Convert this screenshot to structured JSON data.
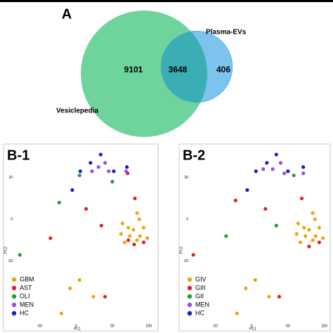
{
  "chart_data": [
    {
      "type": "venn",
      "title": "A",
      "sets": [
        {
          "name": "Vesiclepedia",
          "color": "#6fd39c"
        },
        {
          "name": "Plasma-EVs",
          "color": "#7cc4ee"
        }
      ],
      "overlap_color": "#3aaeb4",
      "values": [
        9101,
        3648,
        406
      ]
    },
    {
      "type": "scatter",
      "title": "B-1",
      "xlabel": "PC1",
      "ylabel": "PC2",
      "xlim": [
        -85,
        108
      ],
      "ylim": [
        -50,
        34
      ],
      "xticks": [
        -50,
        0,
        50,
        100
      ],
      "yticks": [
        -20,
        0,
        20
      ],
      "series": [
        {
          "name": "GBM",
          "color": "#f2a30f",
          "x": [
            84,
            87,
            64,
            72,
            79,
            93,
            62,
            74,
            88,
            98,
            67,
            84,
            5,
            -8,
            24,
            -20
          ],
          "values": [
            3,
            0,
            -2,
            -4,
            -5,
            -4,
            -7,
            -8,
            -8,
            -9,
            -11,
            -10,
            -29,
            -33,
            -37,
            -45
          ]
        },
        {
          "name": "AST",
          "color": "#e2221c",
          "x": [
            71,
            81,
            14,
            35,
            -35,
            40,
            72,
            80,
            93
          ],
          "values": [
            22,
            10,
            5,
            -3,
            -9,
            -37,
            -10,
            -12,
            -11
          ]
        },
        {
          "name": "OLI",
          "color": "#2a9a36",
          "x": [
            5,
            50,
            -23,
            -77
          ],
          "values": [
            21,
            18,
            8,
            -17
          ]
        },
        {
          "name": "MEN",
          "color": "#9a4fd8",
          "x": [
            40,
            31,
            45,
            22,
            69
          ],
          "values": [
            27,
            25,
            23,
            23,
            23
          ]
        },
        {
          "name": "HC",
          "color": "#1b1bd8",
          "x": [
            34,
            20,
            6,
            70,
            -5,
            52
          ],
          "values": [
            31,
            27,
            23,
            25,
            14,
            23
          ]
        }
      ]
    },
    {
      "type": "scatter",
      "title": "B-2",
      "xlabel": "PC1",
      "ylabel": "PC2",
      "xlim": [
        -85,
        108
      ],
      "ylim": [
        -50,
        34
      ],
      "xticks": [
        -50,
        0,
        50,
        100
      ],
      "yticks": [
        -20,
        0,
        20
      ],
      "series": [
        {
          "name": "GIV",
          "color": "#f2a30f",
          "x": [
            84,
            87,
            64,
            72,
            79,
            93,
            62,
            74,
            88,
            98,
            67,
            84,
            5,
            -8,
            24,
            -20
          ],
          "values": [
            3,
            0,
            -2,
            -4,
            -5,
            -4,
            -7,
            -8,
            -8,
            -9,
            -11,
            -10,
            -29,
            -33,
            -37,
            -45
          ]
        },
        {
          "name": "GIII",
          "color": "#e2221c",
          "x": [
            -22,
            19,
            69,
            -80,
            38,
            79,
            93
          ],
          "values": [
            9,
            5,
            10,
            -17,
            -37,
            -13,
            -11
          ]
        },
        {
          "name": "GII",
          "color": "#2a9a36",
          "x": [
            58,
            34,
            -35
          ],
          "values": [
            21,
            -3,
            -8
          ]
        },
        {
          "name": "MEN",
          "color": "#9a4fd8",
          "x": [
            40,
            29,
            16,
            45,
            71
          ],
          "values": [
            27,
            24,
            24,
            22,
            22
          ]
        },
        {
          "name": "HC",
          "color": "#1b1bd8",
          "x": [
            34,
            21,
            6,
            -6,
            71,
            50
          ],
          "values": [
            31,
            27,
            23,
            14,
            25,
            23
          ]
        }
      ]
    }
  ]
}
